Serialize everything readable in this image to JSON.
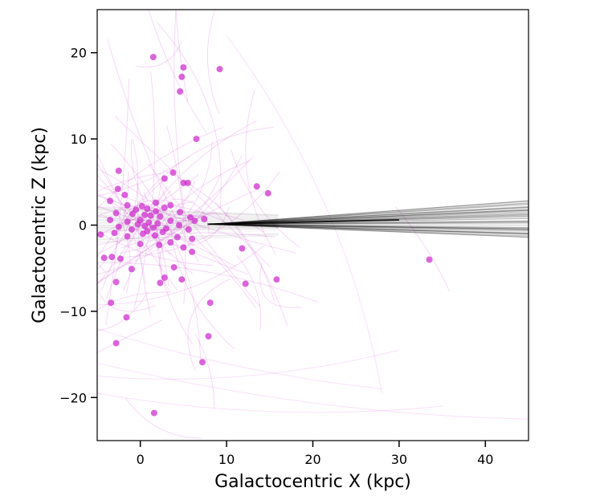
{
  "chart_data": {
    "type": "scatter",
    "xlabel": "Galactocentric X (kpc)",
    "ylabel": "Galactocentric Z (kpc)",
    "xlim": [
      -5,
      45
    ],
    "ylim": [
      -25,
      25
    ],
    "x_ticks": [
      0,
      10,
      20,
      30,
      40
    ],
    "y_ticks": [
      -20,
      -10,
      0,
      10,
      20
    ],
    "grid": false,
    "point_color": "#cc22cc",
    "orbit_color": "#dd77dd",
    "stream_color": "#000000",
    "points": [
      [
        1.5,
        19.5
      ],
      [
        5.0,
        18.3
      ],
      [
        9.2,
        18.1
      ],
      [
        4.8,
        17.2
      ],
      [
        4.6,
        15.5
      ],
      [
        6.5,
        10.0
      ],
      [
        -2.5,
        6.3
      ],
      [
        3.8,
        6.1
      ],
      [
        2.8,
        5.4
      ],
      [
        5.0,
        4.9
      ],
      [
        5.5,
        4.9
      ],
      [
        13.5,
        4.5
      ],
      [
        -2.6,
        4.2
      ],
      [
        14.8,
        3.7
      ],
      [
        -1.8,
        3.5
      ],
      [
        -3.5,
        2.8
      ],
      [
        1.8,
        2.6
      ],
      [
        3.5,
        2.3
      ],
      [
        -1.5,
        2.3
      ],
      [
        0.2,
        2.2
      ],
      [
        2.8,
        2.0
      ],
      [
        0.8,
        1.9
      ],
      [
        -0.5,
        1.8
      ],
      [
        1.8,
        1.6
      ],
      [
        4.6,
        1.5
      ],
      [
        -2.8,
        1.4
      ],
      [
        -0.9,
        1.3
      ],
      [
        0.5,
        1.2
      ],
      [
        1.2,
        1.1
      ],
      [
        2.3,
        1.0
      ],
      [
        5.8,
        0.9
      ],
      [
        7.4,
        0.7
      ],
      [
        -3.5,
        0.6
      ],
      [
        0.0,
        0.6
      ],
      [
        3.5,
        0.5
      ],
      [
        6.3,
        0.5
      ],
      [
        -1.5,
        0.4
      ],
      [
        1.0,
        0.3
      ],
      [
        2.0,
        0.2
      ],
      [
        -0.3,
        0.1
      ],
      [
        4.5,
        0.0
      ],
      [
        0.5,
        -0.1
      ],
      [
        -2.5,
        -0.2
      ],
      [
        1.5,
        -0.3
      ],
      [
        3.0,
        -0.4
      ],
      [
        -1.0,
        -0.5
      ],
      [
        5.6,
        -0.5
      ],
      [
        0.8,
        -0.7
      ],
      [
        2.6,
        -0.8
      ],
      [
        -3.0,
        -0.9
      ],
      [
        -4.6,
        -1.1
      ],
      [
        0.3,
        -1.0
      ],
      [
        1.7,
        -1.2
      ],
      [
        4.3,
        -1.4
      ],
      [
        -1.5,
        -1.3
      ],
      [
        6.0,
        -1.6
      ],
      [
        3.5,
        -2.0
      ],
      [
        0.0,
        -2.2
      ],
      [
        2.2,
        -2.3
      ],
      [
        5.0,
        -2.6
      ],
      [
        11.8,
        -2.7
      ],
      [
        6.0,
        -3.1
      ],
      [
        -4.2,
        -3.8
      ],
      [
        -3.3,
        -3.7
      ],
      [
        -2.3,
        -3.9
      ],
      [
        33.5,
        -4.0
      ],
      [
        3.9,
        -4.9
      ],
      [
        -1.0,
        -5.1
      ],
      [
        2.8,
        -6.1
      ],
      [
        4.8,
        -6.3
      ],
      [
        15.8,
        -6.3
      ],
      [
        -2.8,
        -6.6
      ],
      [
        2.3,
        -6.7
      ],
      [
        12.2,
        -6.8
      ],
      [
        -3.4,
        -9.0
      ],
      [
        8.1,
        -9.0
      ],
      [
        -1.6,
        -10.7
      ],
      [
        7.9,
        -12.9
      ],
      [
        -2.8,
        -13.7
      ],
      [
        7.2,
        -15.9
      ],
      [
        1.6,
        -21.8
      ]
    ]
  }
}
